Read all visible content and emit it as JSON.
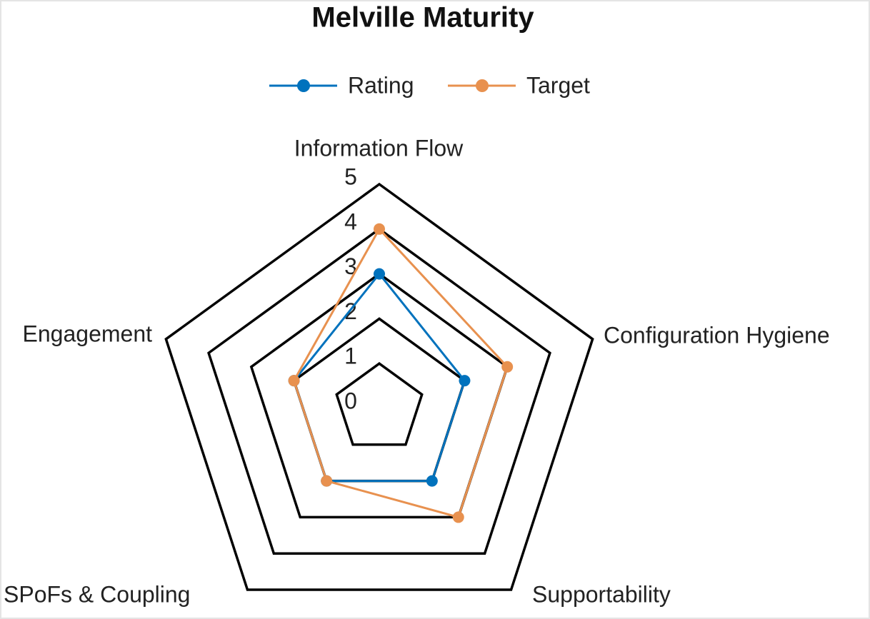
{
  "chart_data": {
    "type": "radar",
    "title": "Melville Maturity",
    "categories": [
      "Information Flow",
      "Configuration Hygiene",
      "Supportability",
      "SPoFs & Coupling",
      "Engagement"
    ],
    "series": [
      {
        "name": "Rating",
        "color": "#0072BD",
        "values": [
          3,
          2,
          2,
          2,
          2
        ]
      },
      {
        "name": "Target",
        "color": "#E8914F",
        "values": [
          4,
          3,
          3,
          2,
          2
        ]
      }
    ],
    "rlim": [
      0,
      5
    ],
    "rticks": [
      0,
      1,
      2,
      3,
      4,
      5
    ],
    "legend": "top"
  }
}
